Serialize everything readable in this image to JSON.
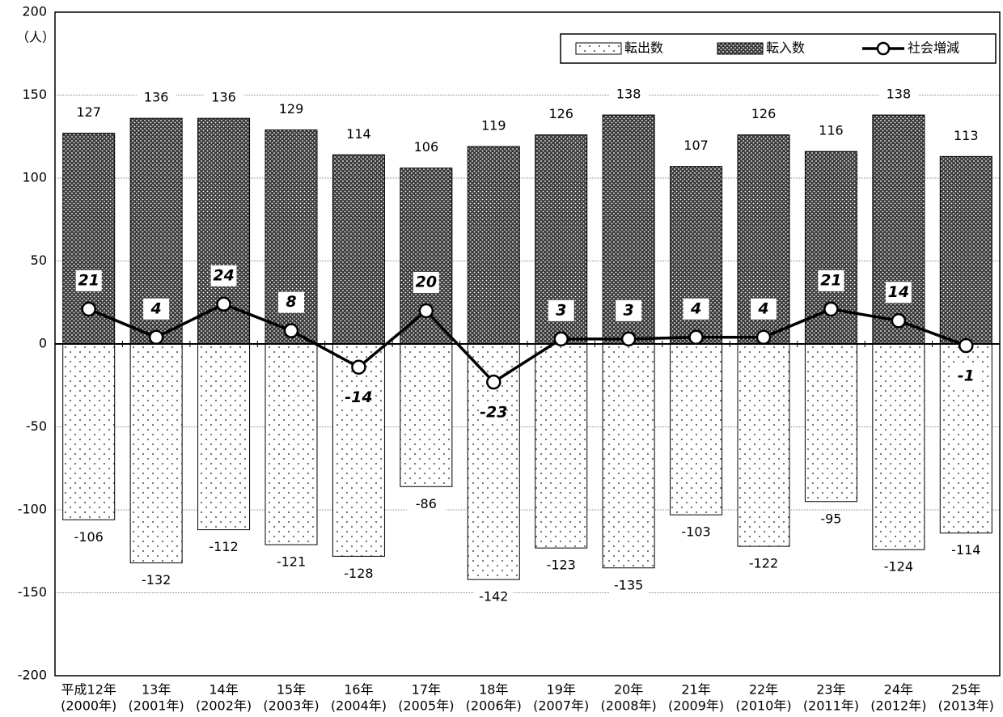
{
  "chart_data": {
    "type": "bar-line",
    "y_unit": "（人）",
    "categories": [
      [
        "平成12年",
        "(2000年)"
      ],
      [
        "13年",
        "(2001年)"
      ],
      [
        "14年",
        "(2002年)"
      ],
      [
        "15年",
        "(2003年)"
      ],
      [
        "16年",
        "(2004年)"
      ],
      [
        "17年",
        "(2005年)"
      ],
      [
        "18年",
        "(2006年)"
      ],
      [
        "19年",
        "(2007年)"
      ],
      [
        "20年",
        "(2008年)"
      ],
      [
        "21年",
        "(2009年)"
      ],
      [
        "22年",
        "(2010年)"
      ],
      [
        "23年",
        "(2011年)"
      ],
      [
        "24年",
        "(2012年)"
      ],
      [
        "25年",
        "(2013年)"
      ]
    ],
    "series": [
      {
        "name": "転出数",
        "type": "bar",
        "color": "#ffffff",
        "values": [
          -106,
          -132,
          -112,
          -121,
          -128,
          -86,
          -142,
          -123,
          -135,
          -103,
          -122,
          -95,
          -124,
          -114
        ]
      },
      {
        "name": "転入数",
        "type": "bar",
        "color": "#3a3a3a",
        "values": [
          127,
          136,
          136,
          129,
          114,
          106,
          119,
          126,
          138,
          107,
          126,
          116,
          138,
          113
        ]
      },
      {
        "name": "社会増減",
        "type": "line",
        "color": "#000000",
        "values": [
          21,
          4,
          24,
          8,
          -14,
          20,
          -23,
          3,
          3,
          4,
          4,
          21,
          14,
          -1
        ]
      }
    ],
    "ylim": [
      -200,
      200
    ],
    "yticks": [
      -200,
      -150,
      -100,
      -50,
      0,
      50,
      100,
      150,
      200
    ],
    "grid": true,
    "legend": "top-right"
  }
}
